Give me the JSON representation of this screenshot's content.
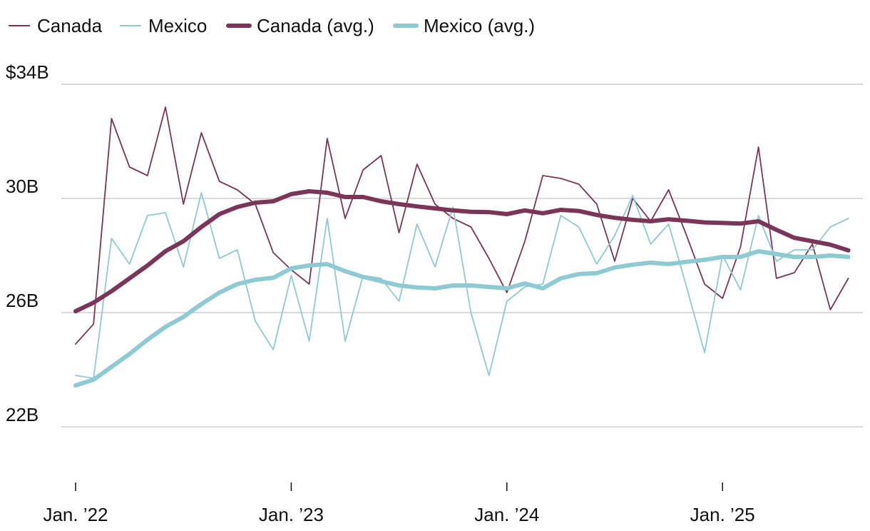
{
  "colors": {
    "canada": "#7b3558",
    "mexico": "#8ecad3",
    "grid": "#cfcfcf",
    "text": "#111111"
  },
  "chart_data": {
    "type": "line",
    "title": "",
    "xlabel": "",
    "ylabel": "",
    "ylim": [
      19,
      34.5
    ],
    "y_ticks": [
      {
        "value": 34,
        "label": "$34B"
      },
      {
        "value": 30,
        "label": "30B"
      },
      {
        "value": 26,
        "label": "26B"
      },
      {
        "value": 22,
        "label": "22B"
      }
    ],
    "x_range": [
      0,
      43.5
    ],
    "x_ticks": [
      {
        "index": 0,
        "label": "Jan. ’22"
      },
      {
        "index": 12,
        "label": "Jan. ’23"
      },
      {
        "index": 24,
        "label": "Jan. ’24"
      },
      {
        "index": 36,
        "label": "Jan. ’25"
      }
    ],
    "legend": [
      "Canada",
      "Mexico",
      "Canada (avg.)",
      "Mexico (avg.)"
    ],
    "legend_position": "top-left",
    "series": [
      {
        "name": "Canada",
        "style": "thin",
        "color": "#7b3558",
        "values": [
          24.9,
          25.6,
          32.8,
          31.1,
          30.8,
          33.2,
          29.8,
          32.3,
          30.6,
          30.3,
          29.8,
          28.1,
          27.5,
          27.0,
          32.1,
          29.3,
          31.0,
          31.5,
          28.8,
          31.2,
          29.8,
          29.3,
          29.0,
          27.9,
          26.7,
          28.5,
          30.8,
          30.7,
          30.5,
          29.8,
          27.8,
          30.0,
          29.2,
          30.3,
          28.7,
          27.0,
          26.5,
          28.3,
          31.8,
          27.2,
          27.4,
          28.4,
          26.1,
          27.2
        ]
      },
      {
        "name": "Mexico",
        "style": "thin",
        "color": "#8ecad3",
        "values": [
          23.8,
          23.7,
          28.6,
          27.7,
          29.4,
          29.5,
          27.6,
          30.2,
          27.9,
          28.2,
          25.7,
          24.7,
          27.3,
          25.0,
          29.3,
          25.0,
          27.3,
          27.2,
          26.4,
          29.1,
          27.6,
          29.7,
          26.0,
          23.8,
          26.4,
          26.9,
          27.0,
          29.4,
          29.0,
          27.7,
          28.7,
          30.1,
          28.4,
          29.1,
          26.9,
          24.6,
          28.0,
          26.8,
          29.4,
          27.8,
          28.2,
          28.2,
          29.0,
          29.3
        ]
      },
      {
        "name": "Canada (avg.)",
        "style": "thick",
        "color": "#7b3558",
        "values": [
          26.05,
          26.35,
          26.75,
          27.2,
          27.65,
          28.15,
          28.5,
          29.0,
          29.45,
          29.7,
          29.85,
          29.9,
          30.15,
          30.25,
          30.2,
          30.05,
          30.05,
          29.9,
          29.8,
          29.72,
          29.65,
          29.58,
          29.53,
          29.52,
          29.45,
          29.58,
          29.48,
          29.6,
          29.56,
          29.42,
          29.32,
          29.25,
          29.2,
          29.27,
          29.22,
          29.16,
          29.14,
          29.12,
          29.2,
          28.9,
          28.62,
          28.5,
          28.38,
          28.18
        ]
      },
      {
        "name": "Mexico (avg.)",
        "style": "thick",
        "color": "#8ecad3",
        "values": [
          23.45,
          23.65,
          24.1,
          24.55,
          25.05,
          25.5,
          25.85,
          26.3,
          26.7,
          27.0,
          27.15,
          27.22,
          27.55,
          27.65,
          27.7,
          27.45,
          27.25,
          27.1,
          26.95,
          26.88,
          26.85,
          26.95,
          26.95,
          26.9,
          26.85,
          27.02,
          26.85,
          27.2,
          27.35,
          27.38,
          27.58,
          27.68,
          27.75,
          27.7,
          27.78,
          27.85,
          27.95,
          27.95,
          28.15,
          28.05,
          27.95,
          27.95,
          28.0,
          27.95
        ]
      }
    ]
  }
}
